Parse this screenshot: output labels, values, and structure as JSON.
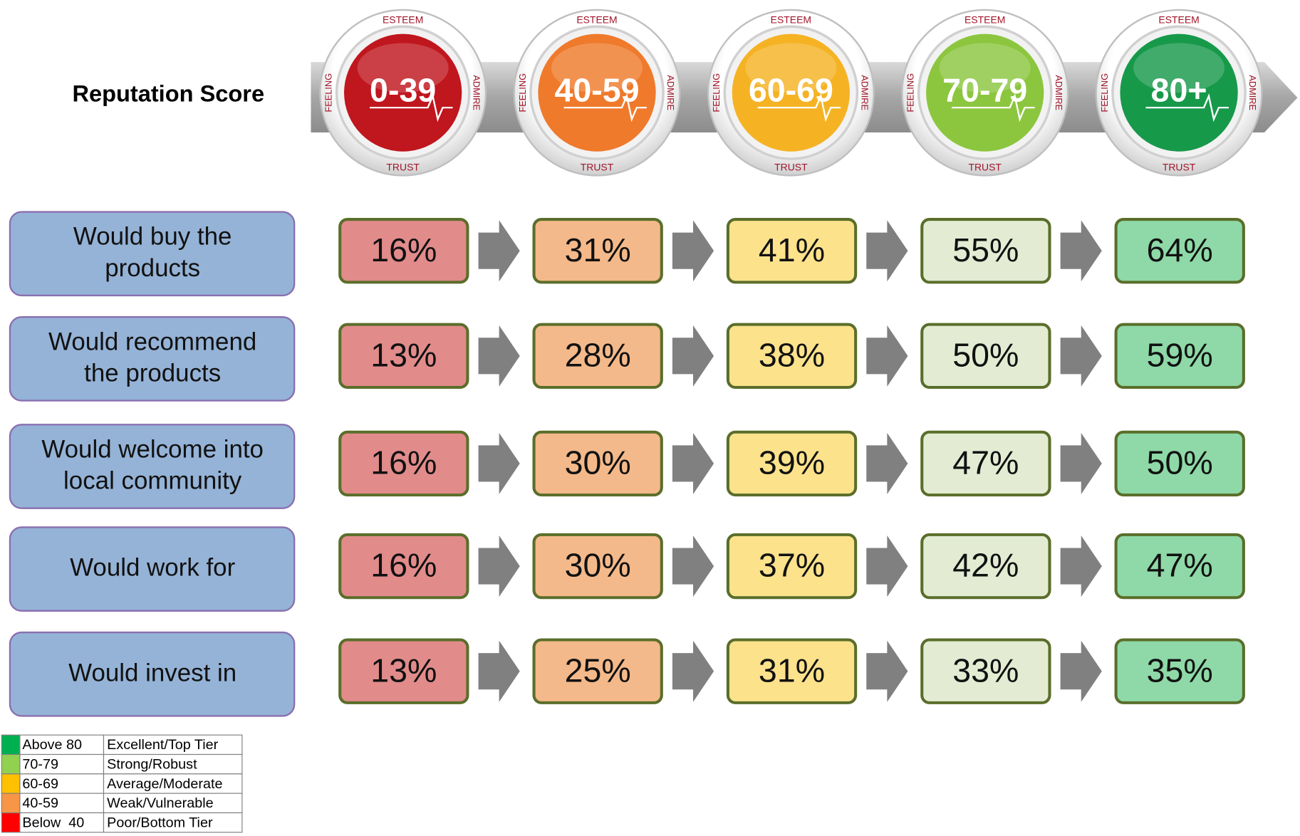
{
  "header": {
    "title": "Reputation Score"
  },
  "ring_words": {
    "top": "ESTEEM",
    "left": "FEELING",
    "right": "ADMIRE",
    "bottom": "TRUST"
  },
  "scores": [
    {
      "label": "0-39",
      "color": "#c0161e",
      "box_fill": "#e28b8b"
    },
    {
      "label": "40-59",
      "color": "#ef7a2b",
      "box_fill": "#f4b98a"
    },
    {
      "label": "60-69",
      "color": "#f5b324",
      "box_fill": "#fde28c"
    },
    {
      "label": "70-79",
      "color": "#8cc63f",
      "box_fill": "#e3ecd3"
    },
    {
      "label": "80+",
      "color": "#17994a",
      "box_fill": "#8ed9a7"
    }
  ],
  "rows": [
    {
      "label": "Would buy the products",
      "values": [
        "16%",
        "31%",
        "41%",
        "55%",
        "64%"
      ]
    },
    {
      "label": "Would recommend the products",
      "values": [
        "13%",
        "28%",
        "38%",
        "50%",
        "59%"
      ]
    },
    {
      "label": "Would welcome into local community",
      "values": [
        "16%",
        "30%",
        "39%",
        "47%",
        "50%"
      ]
    },
    {
      "label": "Would work for",
      "values": [
        "16%",
        "30%",
        "37%",
        "42%",
        "47%"
      ]
    },
    {
      "label": "Would invest in",
      "values": [
        "13%",
        "25%",
        "31%",
        "33%",
        "35%"
      ]
    }
  ],
  "legend": [
    {
      "color": "#00b050",
      "range": "Above 80",
      "meaning": "Excellent/Top Tier"
    },
    {
      "color": "#92d050",
      "range": "70-79",
      "meaning": "Strong/Robust"
    },
    {
      "color": "#ffc000",
      "range": "60-69",
      "meaning": "Average/Moderate"
    },
    {
      "color": "#f79646",
      "range": "40-59",
      "meaning": "Weak/Vulnerable"
    },
    {
      "color": "#ff0000",
      "range": "Below  40",
      "meaning": "Poor/Bottom Tier"
    }
  ]
}
